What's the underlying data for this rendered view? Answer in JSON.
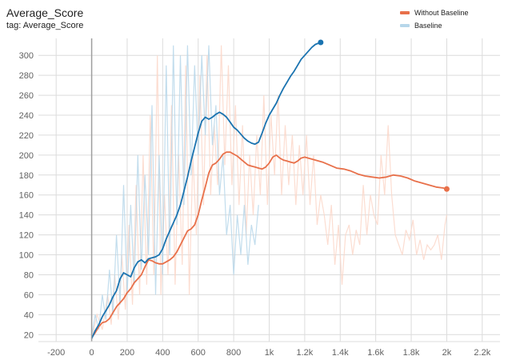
{
  "header": {
    "title": "Average_Score",
    "subtitle": "tag: Average_Score"
  },
  "colors": {
    "without_baseline": "#e8704a",
    "baseline": "#1a73b0",
    "without_baseline_raw": "#fcd7c9",
    "baseline_raw": "#b7d7ea",
    "grid": "#dcdcdc",
    "axis": "#9e9e9e"
  },
  "chart_data": {
    "type": "line",
    "xlim": [
      -300,
      2300
    ],
    "ylim": [
      13,
      317
    ],
    "x_ticks": [
      -200,
      0,
      200,
      400,
      600,
      800,
      1000,
      1200,
      1400,
      1600,
      1800,
      2000,
      2200
    ],
    "x_tick_labels": [
      "-200",
      "0",
      "200",
      "400",
      "600",
      "800",
      "1k",
      "1.2k",
      "1.4k",
      "1.6k",
      "1.8k",
      "2k",
      "2.2k"
    ],
    "y_ticks": [
      20,
      40,
      60,
      80,
      100,
      120,
      140,
      160,
      180,
      200,
      220,
      240,
      260,
      280,
      300
    ],
    "y_tick_labels": [
      "20",
      "40",
      "60",
      "80",
      "100",
      "120",
      "140",
      "160",
      "180",
      "200",
      "220",
      "240",
      "260",
      "280",
      "300"
    ],
    "grid": true,
    "legend_position": "top-right",
    "series": [
      {
        "name": "Without Baseline",
        "color_key": "without_baseline",
        "smoothed": [
          [
            0,
            17
          ],
          [
            20,
            22
          ],
          [
            40,
            28
          ],
          [
            60,
            32
          ],
          [
            80,
            33
          ],
          [
            100,
            36
          ],
          [
            120,
            42
          ],
          [
            140,
            48
          ],
          [
            160,
            52
          ],
          [
            180,
            56
          ],
          [
            200,
            62
          ],
          [
            220,
            66
          ],
          [
            240,
            72
          ],
          [
            260,
            76
          ],
          [
            280,
            80
          ],
          [
            300,
            88
          ],
          [
            320,
            95
          ],
          [
            340,
            94
          ],
          [
            360,
            92
          ],
          [
            380,
            91
          ],
          [
            400,
            91
          ],
          [
            420,
            93
          ],
          [
            440,
            95
          ],
          [
            460,
            98
          ],
          [
            480,
            103
          ],
          [
            500,
            110
          ],
          [
            520,
            117
          ],
          [
            540,
            124
          ],
          [
            560,
            126
          ],
          [
            580,
            130
          ],
          [
            600,
            140
          ],
          [
            620,
            155
          ],
          [
            640,
            168
          ],
          [
            660,
            182
          ],
          [
            680,
            190
          ],
          [
            700,
            192
          ],
          [
            720,
            196
          ],
          [
            740,
            201
          ],
          [
            760,
            203
          ],
          [
            780,
            203
          ],
          [
            800,
            201
          ],
          [
            820,
            199
          ],
          [
            840,
            196
          ],
          [
            860,
            193
          ],
          [
            880,
            190
          ],
          [
            900,
            189
          ],
          [
            920,
            188
          ],
          [
            940,
            187
          ],
          [
            960,
            186
          ],
          [
            980,
            188
          ],
          [
            1000,
            192
          ],
          [
            1020,
            198
          ],
          [
            1040,
            200
          ],
          [
            1060,
            197
          ],
          [
            1080,
            195
          ],
          [
            1100,
            194
          ],
          [
            1120,
            193
          ],
          [
            1140,
            192
          ],
          [
            1160,
            194
          ],
          [
            1180,
            197
          ],
          [
            1200,
            198
          ],
          [
            1220,
            197
          ],
          [
            1260,
            195
          ],
          [
            1300,
            193
          ],
          [
            1340,
            190
          ],
          [
            1380,
            187
          ],
          [
            1420,
            186
          ],
          [
            1460,
            184
          ],
          [
            1500,
            181
          ],
          [
            1540,
            179
          ],
          [
            1580,
            178
          ],
          [
            1620,
            177
          ],
          [
            1660,
            178
          ],
          [
            1700,
            180
          ],
          [
            1740,
            179
          ],
          [
            1780,
            177
          ],
          [
            1820,
            174
          ],
          [
            1860,
            172
          ],
          [
            1900,
            170
          ],
          [
            1940,
            168
          ],
          [
            1980,
            167
          ],
          [
            2000,
            166
          ]
        ],
        "raw": [
          [
            0,
            15
          ],
          [
            30,
            40
          ],
          [
            60,
            25
          ],
          [
            90,
            60
          ],
          [
            110,
            30
          ],
          [
            130,
            80
          ],
          [
            150,
            35
          ],
          [
            170,
            100
          ],
          [
            190,
            45
          ],
          [
            210,
            130
          ],
          [
            230,
            50
          ],
          [
            250,
            170
          ],
          [
            270,
            60
          ],
          [
            290,
            200
          ],
          [
            310,
            70
          ],
          [
            330,
            240
          ],
          [
            350,
            80
          ],
          [
            370,
            300
          ],
          [
            390,
            60
          ],
          [
            410,
            160
          ],
          [
            430,
            80
          ],
          [
            450,
            250
          ],
          [
            470,
            70
          ],
          [
            490,
            200
          ],
          [
            510,
            90
          ],
          [
            530,
            290
          ],
          [
            550,
            60
          ],
          [
            570,
            200
          ],
          [
            590,
            120
          ],
          [
            610,
            280
          ],
          [
            630,
            150
          ],
          [
            650,
            300
          ],
          [
            670,
            160
          ],
          [
            690,
            230
          ],
          [
            710,
            170
          ],
          [
            730,
            310
          ],
          [
            750,
            190
          ],
          [
            770,
            290
          ],
          [
            790,
            170
          ],
          [
            810,
            250
          ],
          [
            830,
            150
          ],
          [
            850,
            230
          ],
          [
            870,
            120
          ],
          [
            890,
            200
          ],
          [
            910,
            140
          ],
          [
            930,
            220
          ],
          [
            950,
            160
          ],
          [
            970,
            260
          ],
          [
            990,
            150
          ],
          [
            1010,
            240
          ],
          [
            1030,
            180
          ],
          [
            1050,
            260
          ],
          [
            1070,
            160
          ],
          [
            1090,
            230
          ],
          [
            1110,
            170
          ],
          [
            1130,
            220
          ],
          [
            1150,
            150
          ],
          [
            1170,
            210
          ],
          [
            1190,
            160
          ],
          [
            1210,
            220
          ],
          [
            1230,
            150
          ],
          [
            1250,
            200
          ],
          [
            1270,
            130
          ],
          [
            1290,
            160
          ],
          [
            1310,
            140
          ],
          [
            1330,
            110
          ],
          [
            1350,
            150
          ],
          [
            1370,
            90
          ],
          [
            1390,
            130
          ],
          [
            1410,
            70
          ],
          [
            1430,
            120
          ],
          [
            1450,
            130
          ],
          [
            1470,
            100
          ],
          [
            1490,
            125
          ],
          [
            1510,
            110
          ],
          [
            1530,
            170
          ],
          [
            1550,
            120
          ],
          [
            1570,
            160
          ],
          [
            1590,
            140
          ],
          [
            1610,
            130
          ],
          [
            1630,
            200
          ],
          [
            1650,
            160
          ],
          [
            1670,
            230
          ],
          [
            1690,
            160
          ],
          [
            1710,
            120
          ],
          [
            1730,
            110
          ],
          [
            1750,
            100
          ],
          [
            1770,
            125
          ],
          [
            1790,
            115
          ],
          [
            1810,
            135
          ],
          [
            1830,
            100
          ],
          [
            1850,
            115
          ],
          [
            1870,
            95
          ],
          [
            1890,
            110
          ],
          [
            1910,
            105
          ],
          [
            1930,
            110
          ],
          [
            1950,
            120
          ],
          [
            1970,
            95
          ],
          [
            1990,
            130
          ],
          [
            2000,
            140
          ]
        ]
      },
      {
        "name": "Baseline",
        "color_key": "baseline",
        "smoothed": [
          [
            0,
            16
          ],
          [
            20,
            24
          ],
          [
            40,
            30
          ],
          [
            60,
            38
          ],
          [
            80,
            44
          ],
          [
            100,
            50
          ],
          [
            120,
            58
          ],
          [
            140,
            64
          ],
          [
            160,
            76
          ],
          [
            180,
            82
          ],
          [
            200,
            80
          ],
          [
            220,
            78
          ],
          [
            240,
            87
          ],
          [
            260,
            93
          ],
          [
            280,
            95
          ],
          [
            300,
            92
          ],
          [
            320,
            96
          ],
          [
            340,
            97
          ],
          [
            360,
            98
          ],
          [
            380,
            100
          ],
          [
            400,
            106
          ],
          [
            420,
            116
          ],
          [
            440,
            124
          ],
          [
            460,
            132
          ],
          [
            480,
            140
          ],
          [
            500,
            150
          ],
          [
            520,
            164
          ],
          [
            540,
            178
          ],
          [
            560,
            194
          ],
          [
            580,
            208
          ],
          [
            600,
            222
          ],
          [
            620,
            234
          ],
          [
            640,
            238
          ],
          [
            660,
            236
          ],
          [
            680,
            238
          ],
          [
            700,
            241
          ],
          [
            720,
            243
          ],
          [
            740,
            241
          ],
          [
            760,
            238
          ],
          [
            780,
            233
          ],
          [
            800,
            228
          ],
          [
            820,
            225
          ],
          [
            840,
            221
          ],
          [
            860,
            217
          ],
          [
            880,
            214
          ],
          [
            900,
            212
          ],
          [
            920,
            211
          ],
          [
            940,
            213
          ],
          [
            960,
            222
          ],
          [
            980,
            232
          ],
          [
            1000,
            240
          ],
          [
            1020,
            246
          ],
          [
            1040,
            252
          ],
          [
            1060,
            260
          ],
          [
            1080,
            267
          ],
          [
            1100,
            273
          ],
          [
            1120,
            279
          ],
          [
            1140,
            284
          ],
          [
            1160,
            290
          ],
          [
            1180,
            296
          ],
          [
            1200,
            300
          ],
          [
            1220,
            304
          ],
          [
            1240,
            308
          ],
          [
            1260,
            311
          ],
          [
            1290,
            313
          ]
        ],
        "raw": [
          [
            0,
            18
          ],
          [
            20,
            40
          ],
          [
            40,
            25
          ],
          [
            60,
            60
          ],
          [
            80,
            35
          ],
          [
            100,
            85
          ],
          [
            120,
            40
          ],
          [
            140,
            120
          ],
          [
            160,
            50
          ],
          [
            180,
            170
          ],
          [
            200,
            60
          ],
          [
            220,
            150
          ],
          [
            240,
            70
          ],
          [
            260,
            200
          ],
          [
            280,
            85
          ],
          [
            300,
            180
          ],
          [
            320,
            100
          ],
          [
            340,
            250
          ],
          [
            360,
            60
          ],
          [
            380,
            200
          ],
          [
            400,
            80
          ],
          [
            420,
            290
          ],
          [
            440,
            100
          ],
          [
            460,
            310
          ],
          [
            480,
            130
          ],
          [
            500,
            300
          ],
          [
            520,
            150
          ],
          [
            540,
            310
          ],
          [
            560,
            180
          ],
          [
            580,
            290
          ],
          [
            600,
            200
          ],
          [
            620,
            300
          ],
          [
            640,
            220
          ],
          [
            660,
            310
          ],
          [
            680,
            210
          ],
          [
            700,
            250
          ],
          [
            720,
            160
          ],
          [
            740,
            200
          ],
          [
            760,
            120
          ],
          [
            780,
            150
          ],
          [
            800,
            80
          ],
          [
            820,
            140
          ],
          [
            840,
            100
          ],
          [
            860,
            150
          ],
          [
            880,
            90
          ],
          [
            900,
            130
          ],
          [
            920,
            110
          ],
          [
            940,
            150
          ]
        ]
      }
    ]
  }
}
